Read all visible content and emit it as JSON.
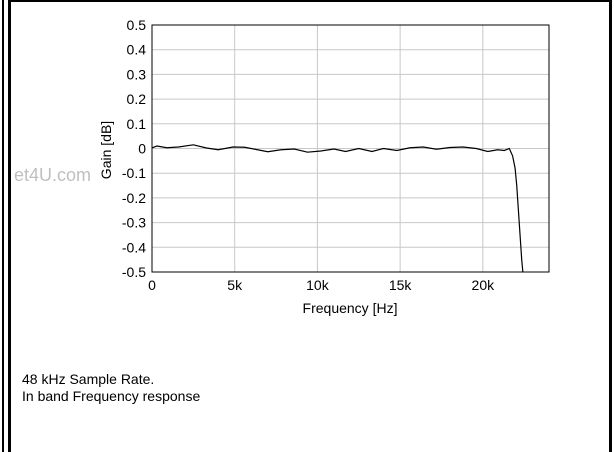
{
  "chart_data": {
    "type": "line",
    "xlabel": "Frequency [Hz]",
    "ylabel": "Gain [dB]",
    "xlim": [
      0,
      24000
    ],
    "ylim": [
      -0.5,
      0.5
    ],
    "x_ticks": [
      0,
      5000,
      10000,
      15000,
      20000
    ],
    "x_tick_labels": [
      "0",
      "5k",
      "10k",
      "15k",
      "20k"
    ],
    "y_ticks": [
      0.5,
      0.4,
      0.3,
      0.2,
      0.1,
      0,
      -0.1,
      -0.2,
      -0.3,
      -0.4,
      -0.5
    ],
    "y_tick_labels": [
      "0.5",
      "0.4",
      "0.3",
      "0.2",
      "0.1",
      "0",
      "-0.1",
      "-0.2",
      "-0.3",
      "-0.4",
      "-0.5"
    ],
    "grid": true,
    "series": [
      {
        "x": [
          0,
          300,
          900,
          1600,
          2500,
          3300,
          4000,
          4900,
          5600,
          6300,
          7000,
          7800,
          8600,
          9400,
          10200,
          11000,
          11700,
          12500,
          13300,
          14000,
          14800,
          15600,
          16400,
          17200,
          18000,
          18800,
          19600,
          20300,
          20900,
          21300,
          21600,
          21800,
          21950,
          22050,
          22150,
          22250,
          22350,
          22420
        ],
        "y": [
          0.003,
          0.01,
          0.003,
          0.006,
          0.015,
          0.002,
          -0.005,
          0.006,
          0.005,
          -0.004,
          -0.013,
          -0.005,
          -0.002,
          -0.015,
          -0.01,
          -0.002,
          -0.012,
          0.0,
          -0.012,
          0.0,
          -0.008,
          0.003,
          0.006,
          -0.003,
          0.004,
          0.006,
          0.0,
          -0.012,
          -0.005,
          -0.008,
          0.0,
          -0.03,
          -0.08,
          -0.15,
          -0.25,
          -0.35,
          -0.45,
          -0.5
        ],
        "color": "#000000"
      }
    ]
  },
  "watermark": "et4U.com",
  "caption": {
    "line1": "48 kHz Sample Rate.",
    "line2": "In band Frequency response"
  }
}
